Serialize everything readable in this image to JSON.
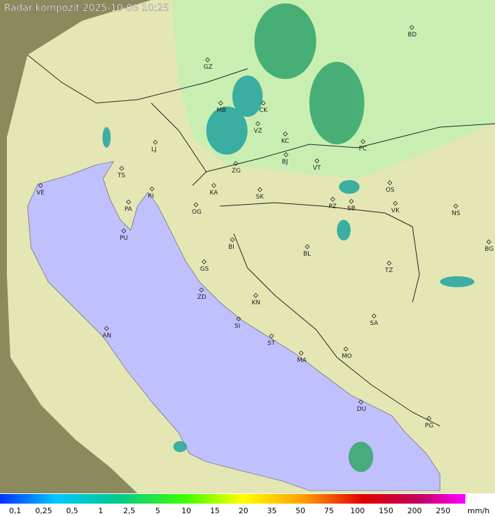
{
  "header": {
    "title": "Radar kompozit  2025-10-06  10:25"
  },
  "cities": [
    "GZ",
    "BD",
    "MB",
    "CK",
    "VZ",
    "KC",
    "LJ",
    "PC",
    "BJ",
    "ZG",
    "VT",
    "TS",
    "VE",
    "RI",
    "KA",
    "SK",
    "OS",
    "PA",
    "PZ",
    "SB",
    "OG",
    "VK",
    "NS",
    "PU",
    "BI",
    "BG",
    "BL",
    "GS",
    "TZ",
    "ZD",
    "KN",
    "SA",
    "SI",
    "AN",
    "ST",
    "MA",
    "MO",
    "DU",
    "PG"
  ],
  "legend": {
    "labels": [
      "0,1",
      "0,25",
      "0,5",
      "1",
      "2,5",
      "5",
      "10",
      "15",
      "20",
      "35",
      "50",
      "75",
      "100",
      "150",
      "200",
      "250"
    ],
    "unit": "mm/h"
  }
}
